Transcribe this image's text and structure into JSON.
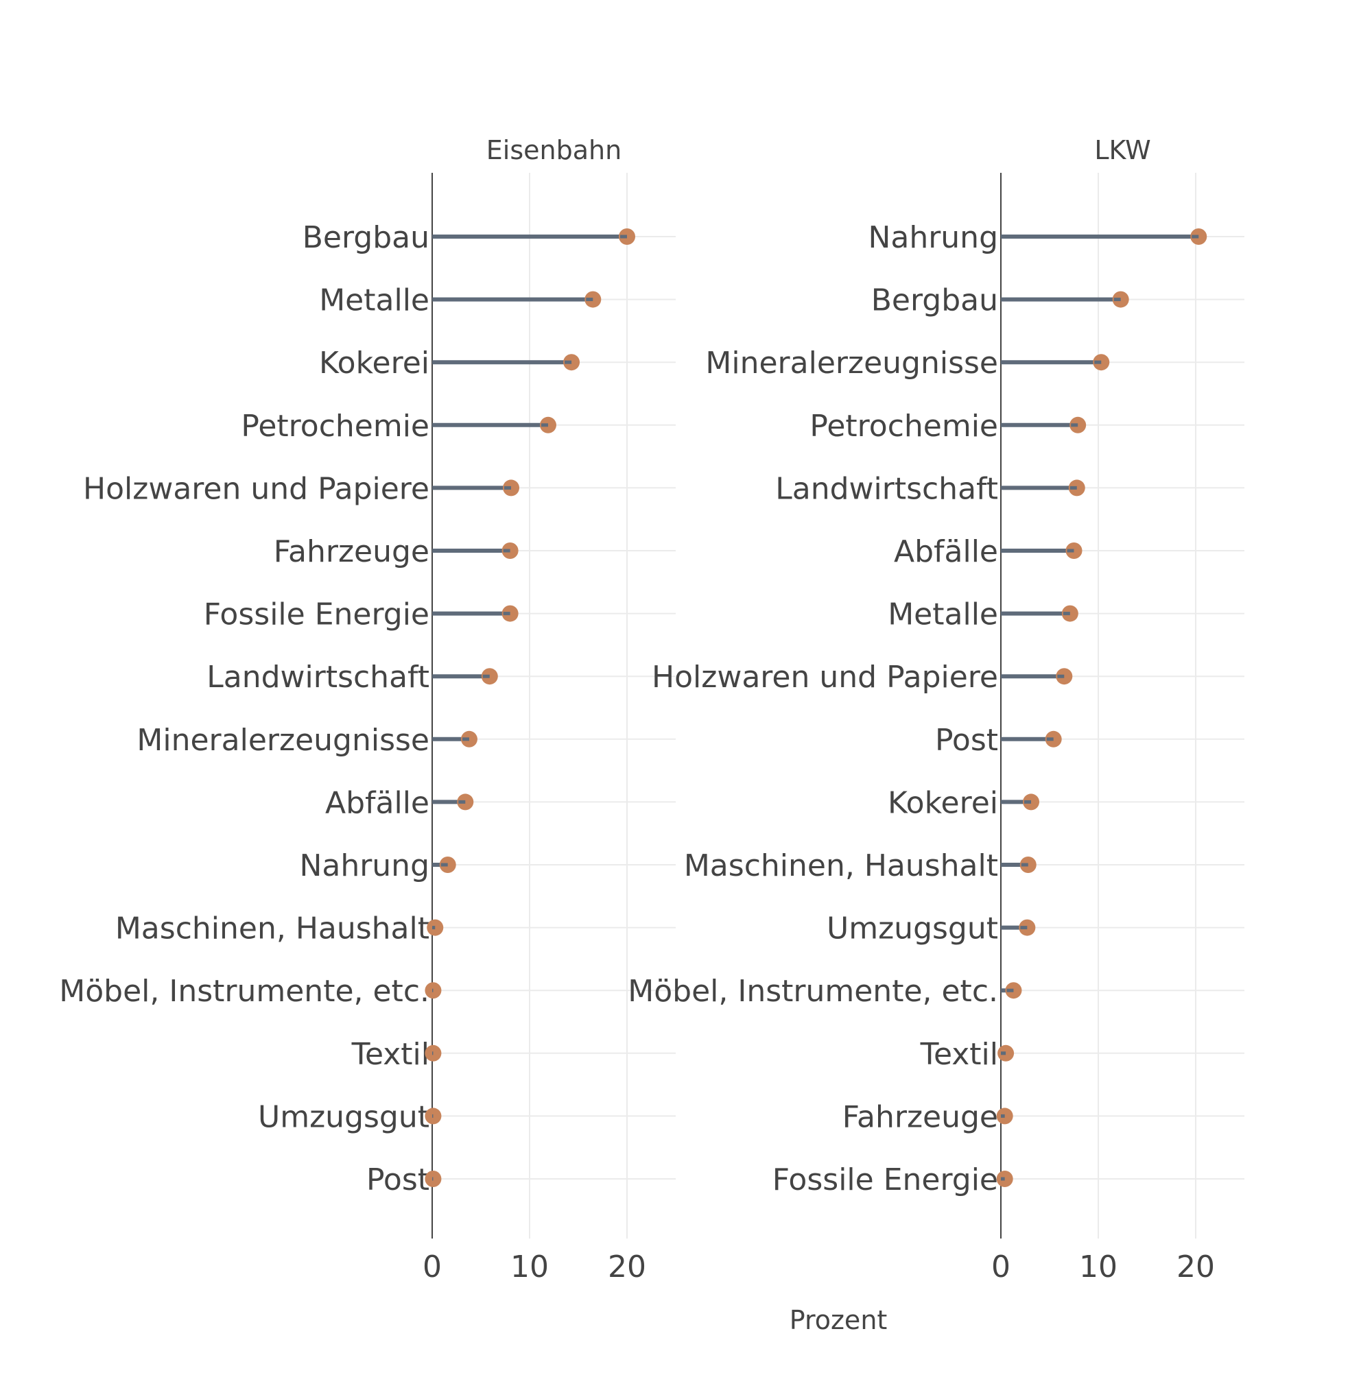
{
  "chart_data": {
    "type": "lollipop",
    "xlabel": "Prozent",
    "xlim": [
      0,
      25
    ],
    "x_ticks": [
      0,
      10,
      20
    ],
    "grid": true,
    "colors": {
      "stem": "#5f6b7a",
      "dot": "#c8845a",
      "grid": "#ebebeb",
      "axis": "#444444"
    },
    "panels": [
      {
        "title": "Eisenbahn",
        "categories": [
          "Bergbau",
          "Metalle",
          "Kokerei",
          "Petrochemie",
          "Holzwaren und Papiere",
          "Fahrzeuge",
          "Fossile Energie",
          "Landwirtschaft",
          "Mineralerzeugnisse",
          "Abfälle",
          "Nahrung",
          "Maschinen, Haushalt",
          "Möbel, Instrumente, etc.",
          "Textil",
          "Umzugsgut",
          "Post"
        ],
        "values": [
          20.0,
          16.5,
          14.3,
          11.9,
          8.1,
          8.0,
          8.0,
          5.9,
          3.8,
          3.4,
          1.6,
          0.3,
          0.1,
          0.1,
          0.1,
          0.1
        ]
      },
      {
        "title": "LKW",
        "categories": [
          "Nahrung",
          "Bergbau",
          "Mineralerzeugnisse",
          "Petrochemie",
          "Landwirtschaft",
          "Abfälle",
          "Metalle",
          "Holzwaren und Papiere",
          "Post",
          "Kokerei",
          "Maschinen, Haushalt",
          "Umzugsgut",
          "Möbel, Instrumente, etc.",
          "Textil",
          "Fahrzeuge",
          "Fossile Energie"
        ],
        "values": [
          20.3,
          12.3,
          10.3,
          7.9,
          7.8,
          7.5,
          7.1,
          6.5,
          5.4,
          3.1,
          2.8,
          2.7,
          1.3,
          0.5,
          0.4,
          0.4
        ]
      }
    ]
  }
}
